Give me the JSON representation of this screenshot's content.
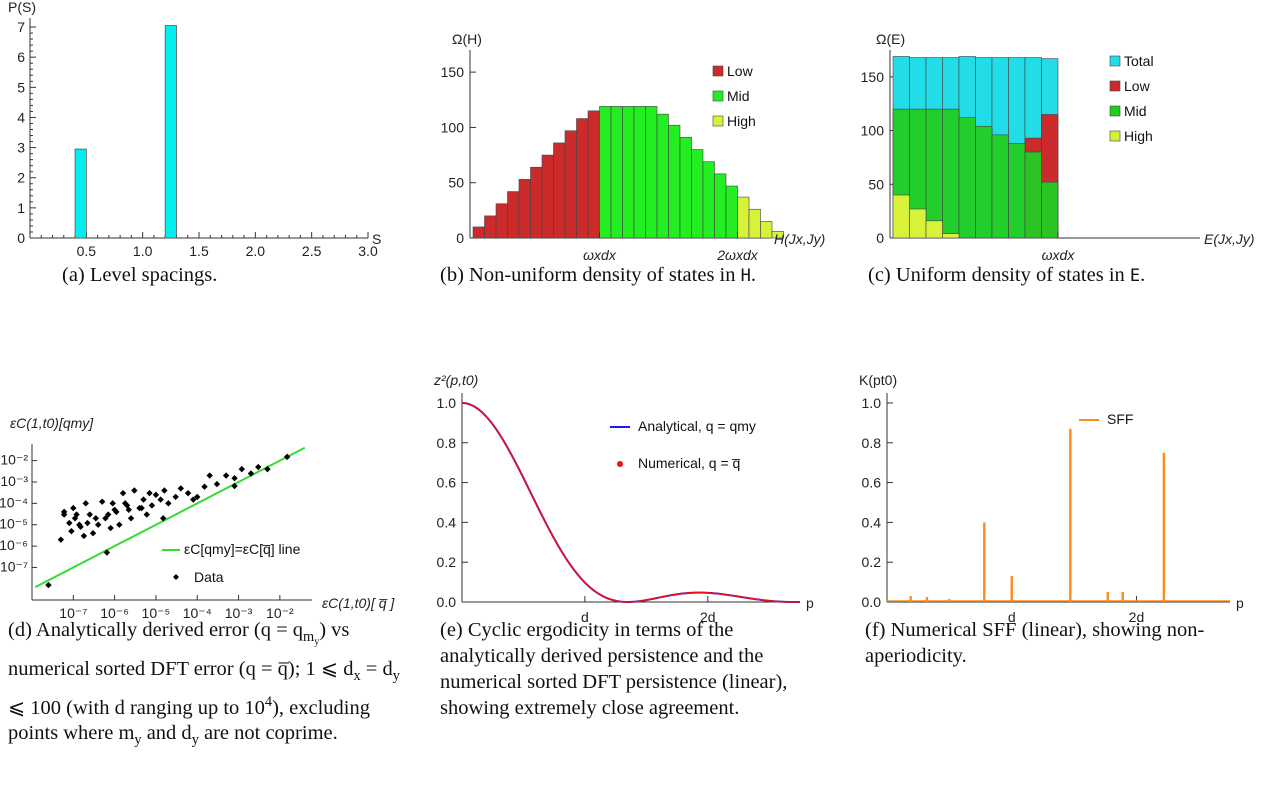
{
  "panels": {
    "a": {
      "caption": "(a) Level spacings.",
      "chart_data": {
        "type": "bar",
        "bins": [
          {
            "x0": 0.4,
            "x1": 0.5,
            "value": 2.95
          },
          {
            "x0": 1.2,
            "x1": 1.3,
            "value": 7.05
          }
        ],
        "xlim": [
          0,
          3.0
        ],
        "ylim": [
          0,
          7.3
        ],
        "xticks": [
          "0.5",
          "1.0",
          "1.5",
          "2.0",
          "2.5",
          "3.0"
        ],
        "yticks": [
          "0",
          "1",
          "2",
          "3",
          "4",
          "5",
          "6",
          "7"
        ],
        "xlabel": "S",
        "ylabel": "P(S)",
        "color": "#00f0f0"
      }
    },
    "b": {
      "caption": "(b) Non-uniform density of states in H.",
      "chart_data": {
        "type": "bar",
        "ylim": [
          0,
          170
        ],
        "yticks": [
          "0",
          "50",
          "100",
          "150"
        ],
        "xticks": [
          "ωxdx",
          "2ωxdx"
        ],
        "xlabel": "H(Jx,Jy)",
        "ylabel": "Ω(H)",
        "series": [
          {
            "name": "Low",
            "color": "#cc2b2b",
            "values": [
              10,
              20,
              31,
              42,
              53,
              64,
              75,
              86,
              97,
              108,
              115
            ]
          },
          {
            "name": "Mid",
            "color": "#22ee22",
            "values": [
              119,
              119,
              119,
              119,
              119,
              112,
              102,
              91,
              80,
              69,
              58,
              47
            ]
          },
          {
            "name": "High",
            "color": "#d8f23a",
            "values": [
              37,
              26,
              15,
              6
            ]
          }
        ],
        "legend": "top-right"
      }
    },
    "c": {
      "caption": "(c) Uniform density of states in E.",
      "chart_data": {
        "type": "bar",
        "ylim": [
          0,
          175
        ],
        "yticks": [
          "0",
          "50",
          "100",
          "150"
        ],
        "xticks": [
          "ωxdx"
        ],
        "xlabel": "E(Jx,Jy)",
        "ylabel": "Ω(E)",
        "series": [
          {
            "name": "Total",
            "color": "#22dde8",
            "values": [
              169,
              168,
              168,
              168,
              169,
              168,
              168,
              168,
              168,
              167
            ]
          },
          {
            "name": "Low",
            "color": "#cc2b2b",
            "values": [
              0,
              0,
              0,
              0,
              0,
              0,
              0,
              0,
              93,
              115
            ]
          },
          {
            "name": "Mid",
            "color": "#22cc22",
            "values": [
              120,
              120,
              120,
              120,
              112,
              104,
              96,
              88,
              80,
              52
            ]
          },
          {
            "name": "High",
            "color": "#d8f23a",
            "values": [
              40,
              27,
              16,
              4,
              0,
              0,
              0,
              0,
              0,
              0
            ]
          }
        ],
        "legend": "top-right"
      }
    },
    "d": {
      "caption": "(d) Analytically derived error (q = qmy) vs numerical sorted DFT error (q = q̅); 1 ⩽ dx = dy ⩽ 100 (with d ranging up to 10⁴), excluding points where my and dy are not coprime.",
      "chart_data": {
        "type": "scatter",
        "scale": "log-log",
        "xlim": [
          1e-08,
          0.06
        ],
        "ylim": [
          3e-09,
          0.06
        ],
        "xticks": [
          "10⁻⁷",
          "10⁻⁶",
          "10⁻⁵",
          "10⁻⁴",
          "10⁻³",
          "10⁻²"
        ],
        "yticks": [
          "10⁻²",
          "10⁻³",
          "10⁻⁴",
          "10⁻⁵",
          "10⁻⁶",
          "10⁻⁷"
        ],
        "xlabel": "εC(1,t0)[ q̅ ]",
        "ylabel": "εC(1,t0)[qmy]",
        "series": [
          {
            "name": "εC[qmy]=εC[q̅] line",
            "type": "line",
            "color": "#33dd33",
            "x": [
              1.2e-08,
              0.04
            ],
            "y": [
              1.2e-08,
              0.04
            ]
          },
          {
            "name": "Data",
            "type": "scatter",
            "color": "#000000",
            "x": [
              2.5e-08,
              6.5e-07,
              1.5e-05,
              0.0008,
              0.015,
              5e-08,
              6e-08,
              8e-08,
              1e-07,
              1.2e-07,
              1.5e-07,
              2e-07,
              2.5e-07,
              3e-07,
              4e-07,
              5e-07,
              6e-07,
              8e-07,
              1e-06,
              1.3e-06,
              1.6e-06,
              2e-06,
              2.5e-06,
              3e-06,
              4e-06,
              5e-06,
              6e-06,
              8e-06,
              1e-05,
              1.3e-05,
              1.6e-05,
              2e-05,
              3e-05,
              4e-05,
              6e-05,
              8e-05,
              0.0001,
              0.00015,
              0.0002,
              0.0003,
              0.0005,
              0.0008,
              0.0012,
              0.002,
              0.003,
              0.005,
              6e-08,
              9e-08,
              1.1e-07,
              1.4e-07,
              1.8e-07,
              2.2e-07,
              3.5e-07,
              7e-07,
              9e-07,
              1.1e-06,
              1.8e-06,
              2.2e-06,
              4.5e-06,
              7e-06
            ],
            "y": [
              1.5e-08,
              5e-07,
              2e-05,
              0.00065,
              0.015,
              2e-06,
              4e-05,
              1.2e-05,
              6e-05,
              3e-05,
              8e-06,
              0.0001,
              3e-05,
              4e-06,
              1e-05,
              0.00012,
              2e-05,
              7e-06,
              5e-05,
              1e-05,
              0.0003,
              8e-05,
              2e-05,
              0.0004,
              6e-05,
              0.00015,
              3e-05,
              8e-05,
              0.00025,
              0.00015,
              0.0004,
              0.0001,
              0.0002,
              0.0005,
              0.0003,
              0.00015,
              0.0002,
              0.0006,
              0.002,
              0.0008,
              0.002,
              0.0015,
              0.004,
              0.0025,
              0.005,
              0.004,
              3e-05,
              5e-06,
              2e-05,
              1e-05,
              3e-06,
              1.2e-05,
              2e-05,
              3e-05,
              0.0001,
              4e-05,
              0.0001,
              5e-05,
              6e-05,
              0.0003
            ]
          }
        ],
        "legend": "bottom-right"
      }
    },
    "e": {
      "caption": "(e) Cyclic ergodicity in terms of the analytically derived persistence and the numerical sorted DFT persistence (linear), showing extremely close agreement.",
      "chart_data": {
        "type": "line",
        "xlim": [
          0,
          2.75
        ],
        "ylim": [
          0,
          1.05
        ],
        "xticks": [
          "d",
          "2d"
        ],
        "yticks": [
          "0.0",
          "0.2",
          "0.4",
          "0.6",
          "0.8",
          "1.0"
        ],
        "xlabel": "p",
        "ylabel": "z²(p,t0)",
        "series": [
          {
            "name": "Analytical, q = qmy",
            "color": "#1a1aff"
          },
          {
            "name": "Numerical, q = q̅",
            "color": "#ee1111"
          }
        ],
        "legend": "top-right"
      }
    },
    "f": {
      "caption": "(f) Numerical SFF (linear), showing non-aperiodicity.",
      "chart_data": {
        "type": "bar",
        "xlim": [
          0,
          2.75
        ],
        "ylim": [
          0,
          1.05
        ],
        "xticks": [
          "d",
          "2d"
        ],
        "yticks": [
          "0.0",
          "0.2",
          "0.4",
          "0.6",
          "0.8",
          "1.0"
        ],
        "xlabel": "p",
        "ylabel": "K(pt0)",
        "spikes": [
          {
            "x": 0.19,
            "y": 0.03
          },
          {
            "x": 0.32,
            "y": 0.025
          },
          {
            "x": 0.5,
            "y": 0.015
          },
          {
            "x": 0.78,
            "y": 0.4
          },
          {
            "x": 1.0,
            "y": 0.13
          },
          {
            "x": 1.47,
            "y": 0.87
          },
          {
            "x": 1.77,
            "y": 0.05
          },
          {
            "x": 1.89,
            "y": 0.05
          },
          {
            "x": 2.22,
            "y": 0.75
          }
        ],
        "series": [
          {
            "name": "SFF",
            "color": "#ff8c1a"
          }
        ],
        "legend": "top-right"
      }
    }
  }
}
